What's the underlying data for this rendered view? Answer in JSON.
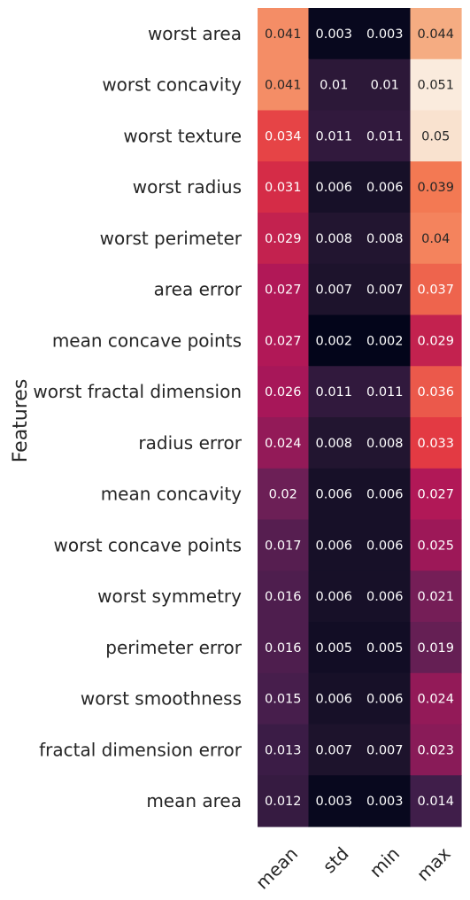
{
  "chart_data": {
    "type": "heatmap",
    "ylabel": "Features",
    "xlabel": "",
    "columns": [
      "mean",
      "std",
      "min",
      "max"
    ],
    "rows": [
      "worst area",
      "worst concavity",
      "worst texture",
      "worst radius",
      "worst perimeter",
      "area error",
      "mean concave points",
      "worst fractal dimension",
      "radius error",
      "mean concavity",
      "worst concave points",
      "worst symmetry",
      "perimeter error",
      "worst smoothness",
      "fractal dimension error",
      "mean area"
    ],
    "values": [
      [
        0.041,
        0.003,
        0.003,
        0.044
      ],
      [
        0.041,
        0.01,
        0.01,
        0.051
      ],
      [
        0.034,
        0.011,
        0.011,
        0.05
      ],
      [
        0.031,
        0.006,
        0.006,
        0.039
      ],
      [
        0.029,
        0.008,
        0.008,
        0.04
      ],
      [
        0.027,
        0.007,
        0.007,
        0.037
      ],
      [
        0.027,
        0.002,
        0.002,
        0.029
      ],
      [
        0.026,
        0.011,
        0.011,
        0.036
      ],
      [
        0.024,
        0.008,
        0.008,
        0.033
      ],
      [
        0.02,
        0.006,
        0.006,
        0.027
      ],
      [
        0.017,
        0.006,
        0.006,
        0.025
      ],
      [
        0.016,
        0.006,
        0.006,
        0.021
      ],
      [
        0.016,
        0.005,
        0.005,
        0.019
      ],
      [
        0.015,
        0.006,
        0.006,
        0.024
      ],
      [
        0.013,
        0.007,
        0.007,
        0.023
      ],
      [
        0.012,
        0.003,
        0.003,
        0.014
      ]
    ],
    "value_range": [
      0.002,
      0.051
    ],
    "colormap": "rocket",
    "annotated": true,
    "colorbar": false
  }
}
